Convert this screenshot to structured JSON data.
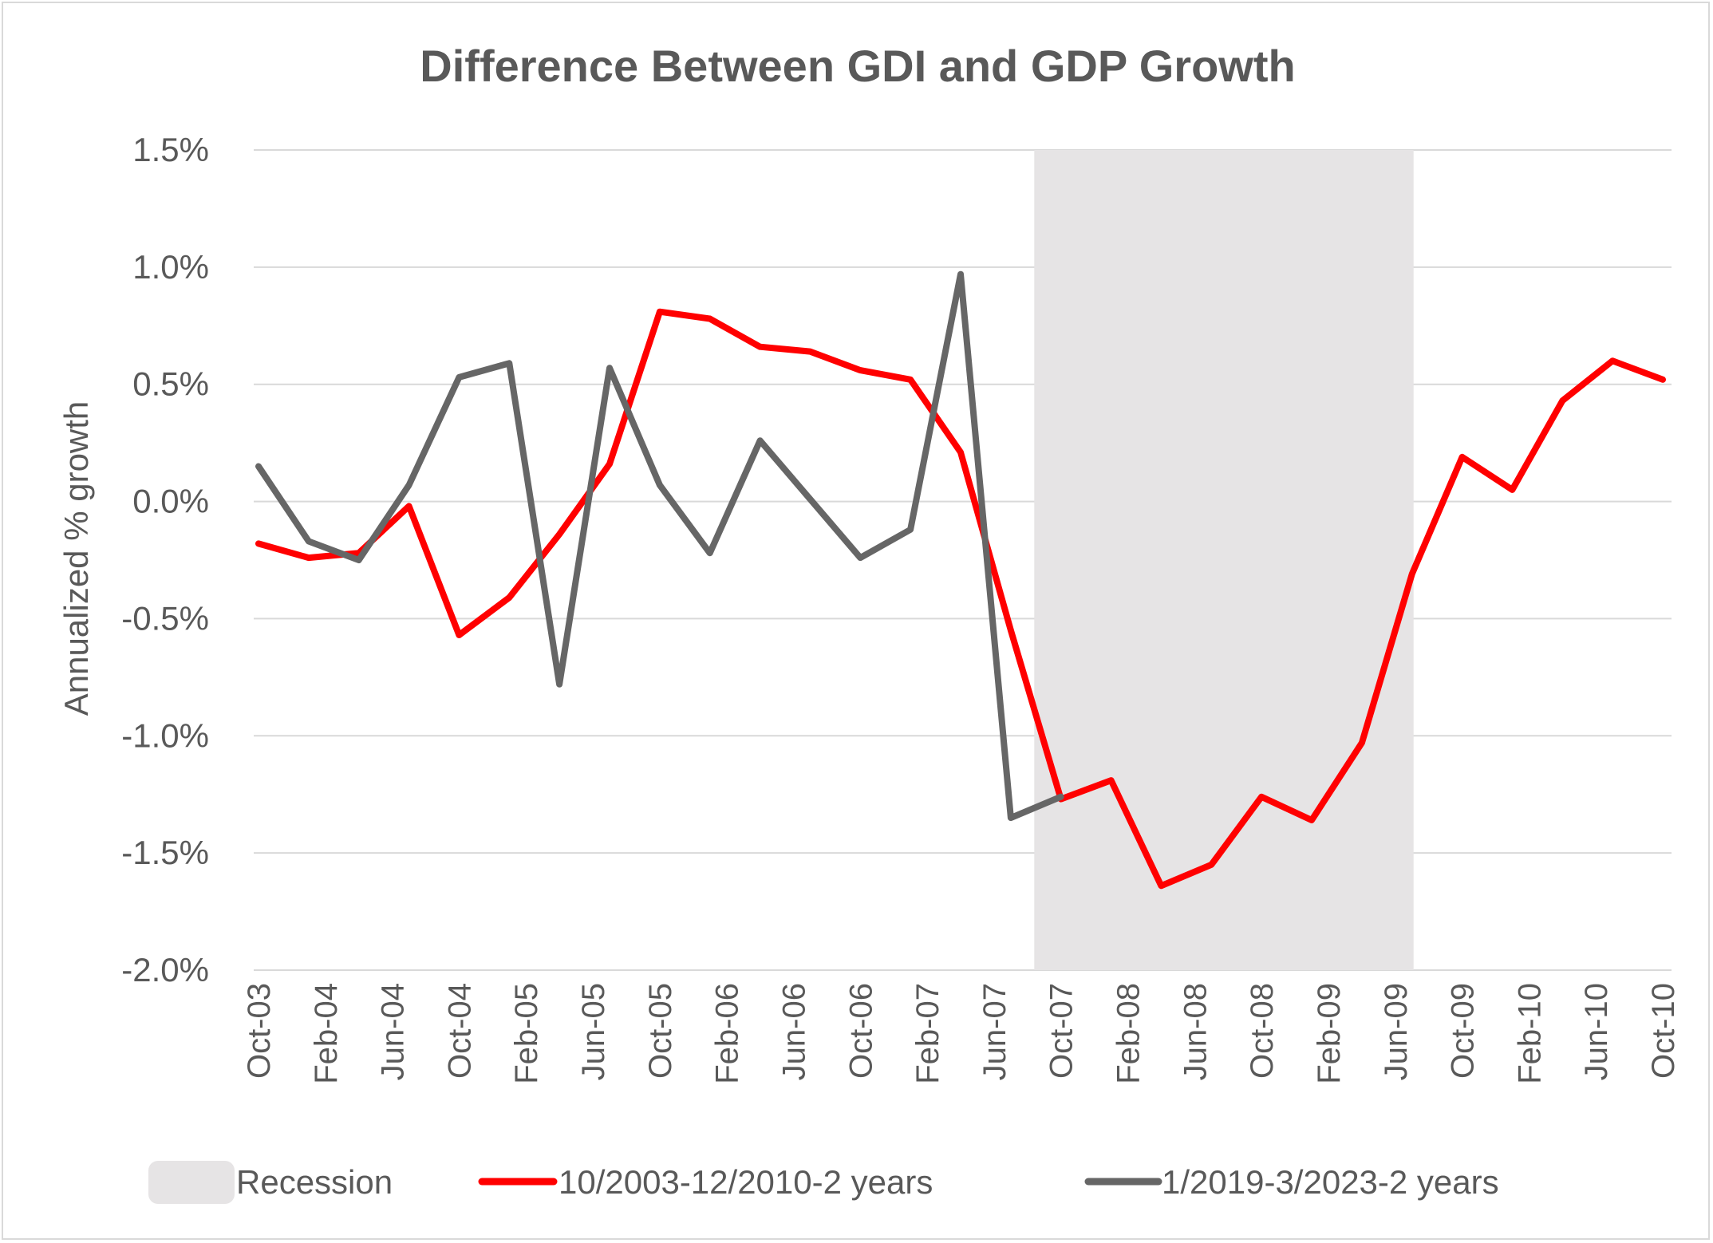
{
  "chart_data": {
    "type": "line",
    "title": "Difference Between GDI and GDP Growth",
    "xlabel": "",
    "ylabel": "Annualized % growth",
    "ylim": [
      -2.0,
      1.5
    ],
    "yticks": [
      1.5,
      1.0,
      0.5,
      0.0,
      -0.5,
      -1.0,
      -1.5,
      -2.0
    ],
    "ytick_labels": [
      "1.5%",
      "1.0%",
      "0.5%",
      "0.0%",
      "-0.5%",
      "-1.0%",
      "-1.5%",
      "-2.0%"
    ],
    "grid": true,
    "x_start": "Oct-03",
    "x_end": "Oct-10",
    "x_frequency": "quarterly",
    "xtick_labels": [
      "Oct-03",
      "Feb-04",
      "Jun-04",
      "Oct-04",
      "Feb-05",
      "Jun-05",
      "Oct-05",
      "Feb-06",
      "Jun-06",
      "Oct-06",
      "Feb-07",
      "Jun-07",
      "Oct-07",
      "Feb-08",
      "Jun-08",
      "Oct-08",
      "Feb-09",
      "Jun-09",
      "Oct-09",
      "Feb-10",
      "Jun-10",
      "Oct-10"
    ],
    "recession": {
      "name": "Recession",
      "start_quarter_index": 15.5,
      "end_quarter_index": 23.0,
      "color": "#e6e4e5"
    },
    "series": [
      {
        "name": "10/2003-12/2010-2 years",
        "color": "#ff0000",
        "values": [
          -0.18,
          -0.24,
          -0.22,
          -0.02,
          -0.57,
          -0.41,
          -0.14,
          0.16,
          0.81,
          0.78,
          0.66,
          0.64,
          0.56,
          0.52,
          0.21,
          -0.55,
          -1.27,
          -1.19,
          -1.64,
          -1.55,
          -1.26,
          -1.36,
          -1.03,
          -0.31,
          0.19,
          0.05,
          0.43,
          0.6,
          0.52
        ]
      },
      {
        "name": "1/2019-3/2023-2 years",
        "color": "#666666",
        "values": [
          0.15,
          -0.17,
          -0.25,
          0.07,
          0.53,
          0.59,
          -0.78,
          0.57,
          0.07,
          -0.22,
          0.26,
          0.01,
          -0.24,
          -0.12,
          0.97,
          -1.35,
          -1.26
        ]
      }
    ],
    "legend": {
      "position": "bottom",
      "entries": [
        "Recession",
        "10/2003-12/2010-2 years",
        "1/2019-3/2023-2 years"
      ]
    }
  }
}
